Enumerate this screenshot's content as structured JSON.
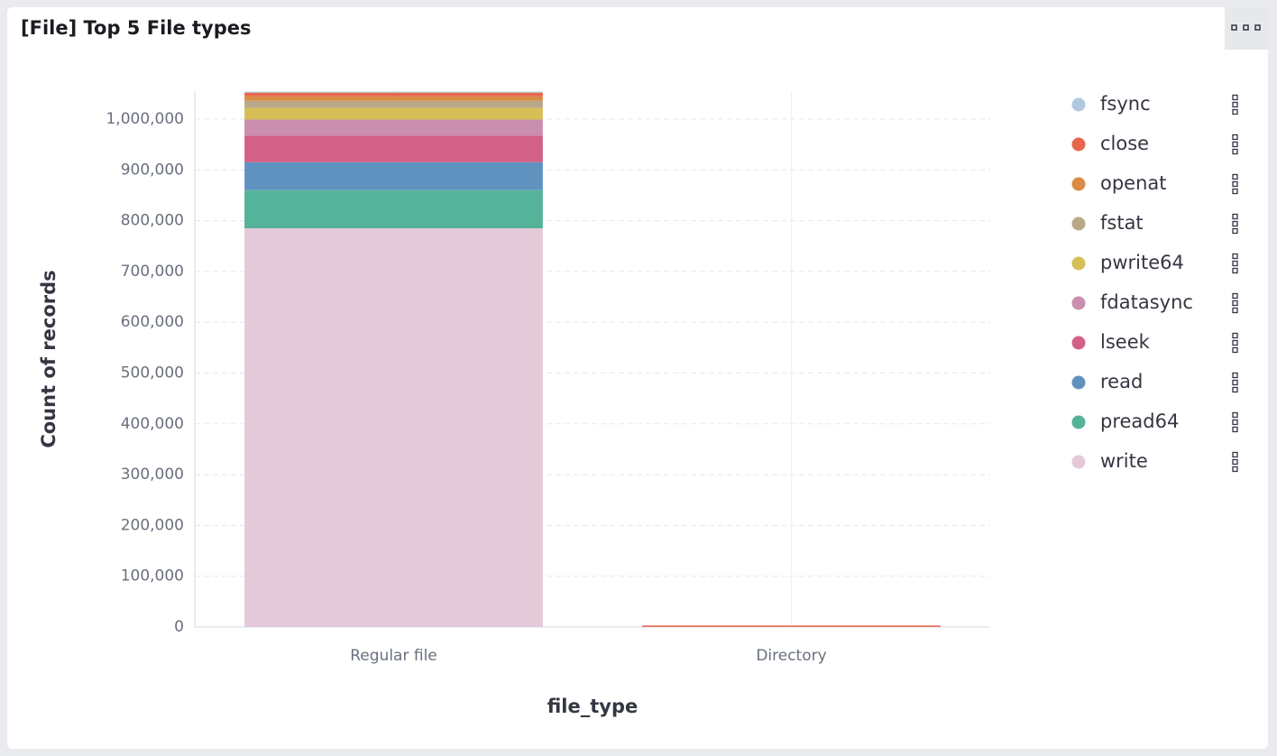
{
  "chart_data": {
    "type": "bar",
    "stacked": true,
    "title": "[File] Top 5 File types",
    "x_label": "file_type",
    "y_label": "Count of records",
    "categories": [
      "Regular file",
      "Directory"
    ],
    "series": [
      {
        "name": "fsync",
        "color": "#b0c9e0",
        "values": [
          2000,
          0
        ]
      },
      {
        "name": "close",
        "color": "#e7664c",
        "values": [
          7000,
          2500
        ]
      },
      {
        "name": "openat",
        "color": "#da8b45",
        "values": [
          9000,
          500
        ]
      },
      {
        "name": "fstat",
        "color": "#b9a888",
        "values": [
          14000,
          0
        ]
      },
      {
        "name": "pwrite64",
        "color": "#d6bf57",
        "values": [
          23000,
          0
        ]
      },
      {
        "name": "fdatasync",
        "color": "#ca8eae",
        "values": [
          32000,
          0
        ]
      },
      {
        "name": "lseek",
        "color": "#d36086",
        "values": [
          52000,
          0
        ]
      },
      {
        "name": "read",
        "color": "#6092c0",
        "values": [
          55000,
          0
        ]
      },
      {
        "name": "pread64",
        "color": "#54b399",
        "values": [
          75000,
          0
        ]
      },
      {
        "name": "write",
        "color": "#e4c9d8",
        "values": [
          785000,
          0
        ]
      }
    ],
    "ylim": [
      0,
      1055000
    ],
    "yticks": [
      0,
      {
        "value": 100000,
        "label": "100,000"
      },
      {
        "value": 200000,
        "label": "200,000"
      },
      {
        "value": 300000,
        "label": "300,000"
      },
      {
        "value": 400000,
        "label": "400,000"
      },
      {
        "value": 500000,
        "label": "500,000"
      },
      {
        "value": 600000,
        "label": "600,000"
      },
      {
        "value": 700000,
        "label": "700,000"
      },
      {
        "value": 800000,
        "label": "800,000"
      },
      {
        "value": 900000,
        "label": "900,000"
      },
      {
        "value": 1000000,
        "label": "1,000,000"
      }
    ],
    "grid": true,
    "legend": "right"
  }
}
